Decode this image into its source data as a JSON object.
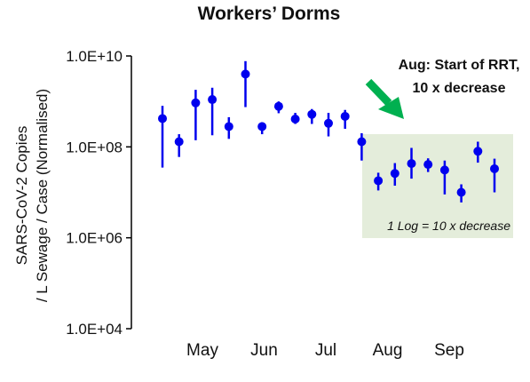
{
  "chart_data": {
    "type": "scatter",
    "title": "Workers’ Dorms",
    "ylabel_line1": "SARS-CoV-2 Copies",
    "ylabel_line2": "/ L Sewage / Case (Normalised)",
    "xlabel": "",
    "y_scale": "log",
    "ylim": [
      10000,
      10000000000
    ],
    "y_ticks": [
      {
        "value": 10000,
        "label": "1.0E+04"
      },
      {
        "value": 1000000,
        "label": "1.0E+06"
      },
      {
        "value": 100000000,
        "label": "1.0E+08"
      },
      {
        "value": 10000000000,
        "label": "1.0E+10"
      }
    ],
    "x_tick_labels": [
      "May",
      "Jun",
      "Jul",
      "Aug",
      "Sep"
    ],
    "grid": false,
    "legend": "none",
    "marker_color": "#0000EE",
    "points": [
      {
        "y": 420000000,
        "low": 35000000,
        "high": 800000000
      },
      {
        "y": 130000000,
        "low": 60000000,
        "high": 190000000
      },
      {
        "y": 930000000,
        "low": 140000000,
        "high": 1800000000
      },
      {
        "y": 1100000000,
        "low": 180000000,
        "high": 2000000000
      },
      {
        "y": 280000000,
        "low": 150000000,
        "high": 450000000
      },
      {
        "y": 4000000000,
        "low": 750000000,
        "high": 7700000000
      },
      {
        "y": 280000000,
        "low": 190000000,
        "high": 350000000
      },
      {
        "y": 780000000,
        "low": 550000000,
        "high": 1000000000
      },
      {
        "y": 410000000,
        "low": 320000000,
        "high": 560000000
      },
      {
        "y": 520000000,
        "low": 320000000,
        "high": 680000000
      },
      {
        "y": 330000000,
        "low": 170000000,
        "high": 560000000
      },
      {
        "y": 470000000,
        "low": 250000000,
        "high": 650000000
      },
      {
        "y": 130000000,
        "low": 50000000,
        "high": 200000000
      },
      {
        "y": 18000000,
        "low": 11000000,
        "high": 27000000
      },
      {
        "y": 26000000,
        "low": 14000000,
        "high": 44000000
      },
      {
        "y": 43000000,
        "low": 20000000,
        "high": 95000000
      },
      {
        "y": 41000000,
        "low": 28000000,
        "high": 56000000
      },
      {
        "y": 31000000,
        "low": 9000000,
        "high": 50000000
      },
      {
        "y": 10000000,
        "low": 6000000,
        "high": 15000000
      },
      {
        "y": 80000000,
        "low": 45000000,
        "high": 130000000
      },
      {
        "y": 33000000,
        "low": 10000000,
        "high": 55000000
      }
    ],
    "highlight_box": {
      "note": "1 Log = 10 x decrease",
      "color": "#E4EDDB"
    },
    "annotation": {
      "line1": "Aug: Start of RRT,",
      "line2": "10 x decrease",
      "arrow_color": "#00B050"
    }
  }
}
